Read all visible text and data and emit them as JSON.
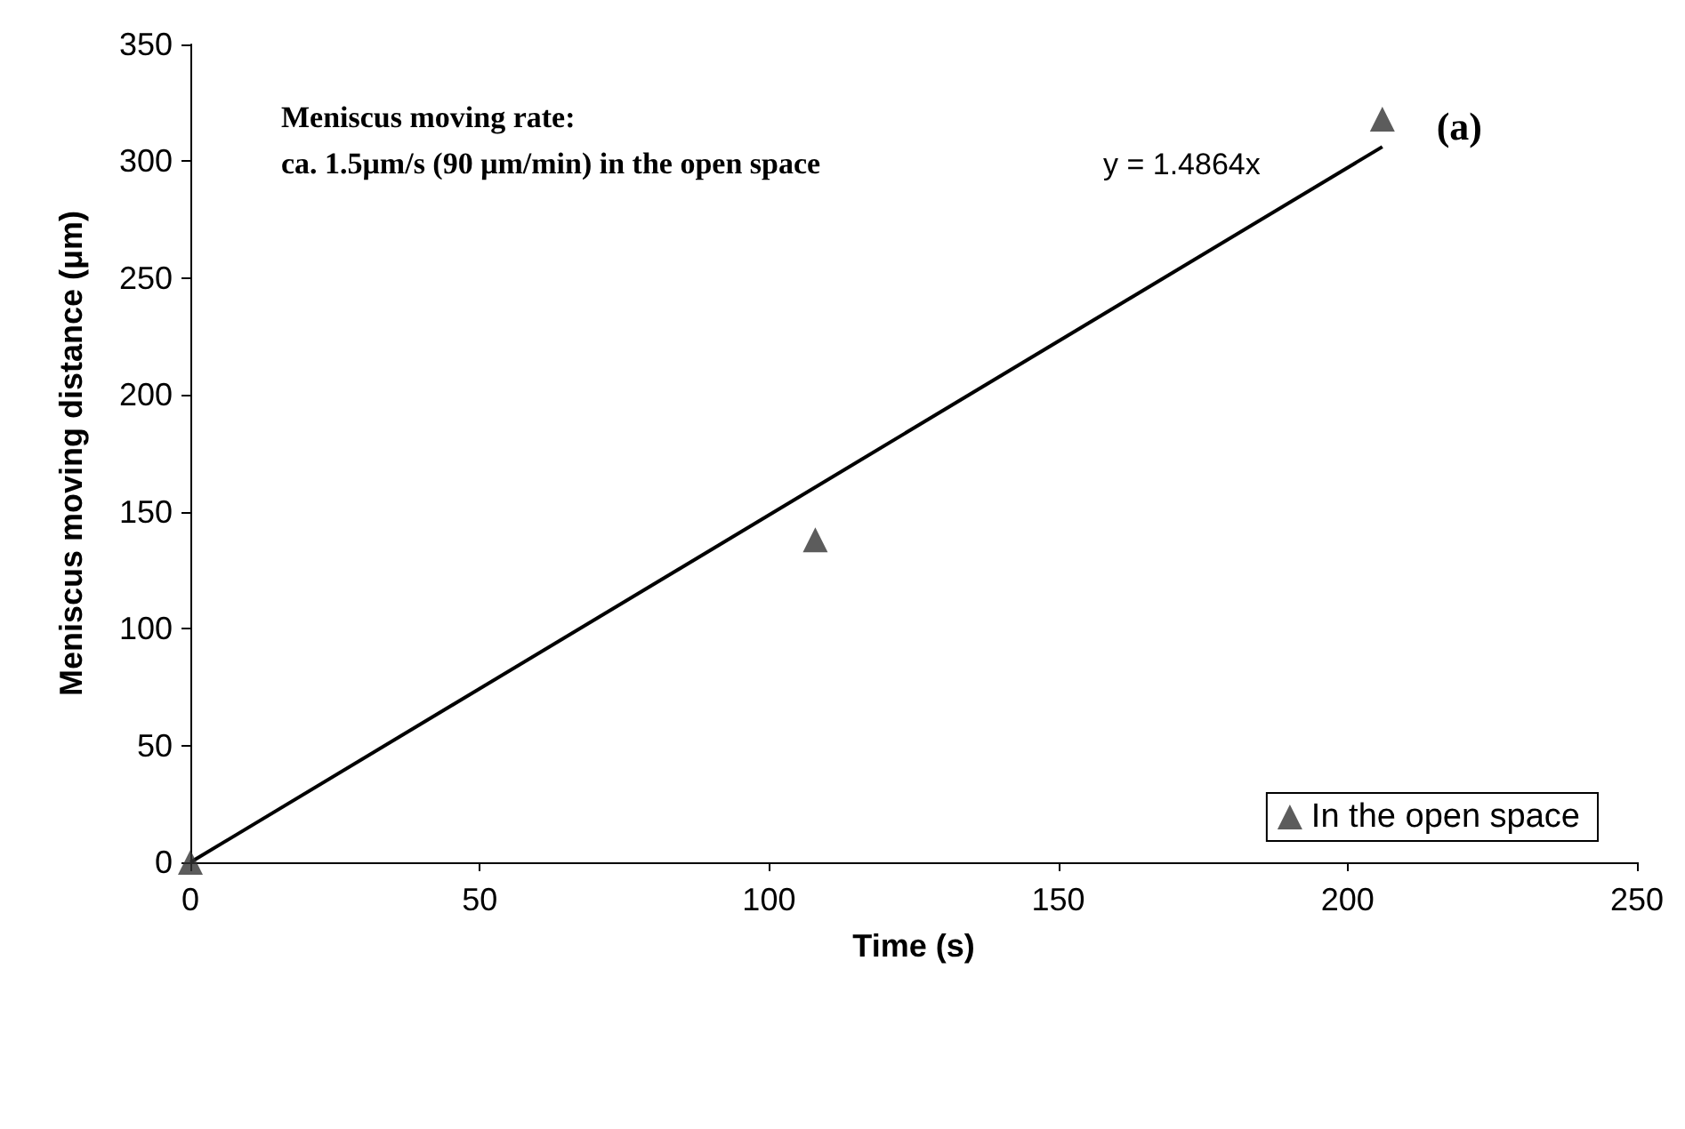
{
  "chart_data": {
    "type": "scatter",
    "xlabel": "Time (s)",
    "ylabel": "Meniscus moving distance (μm)",
    "xlim": [
      0,
      250
    ],
    "xticks": [
      0,
      50,
      100,
      150,
      200,
      250
    ],
    "ylim": [
      0,
      350
    ],
    "yticks": [
      0,
      50,
      100,
      150,
      200,
      250,
      300,
      350
    ],
    "grid": false,
    "legend": "bottom right",
    "series": [
      {
        "name": "In the open space",
        "type": "scatter",
        "marker": "triangle",
        "color": "#333333",
        "x": [
          0,
          108,
          206
        ],
        "values": [
          0,
          138,
          318
        ]
      },
      {
        "type": "line",
        "marker": "none",
        "color": "#000000",
        "x": [
          0,
          206
        ],
        "values": [
          0,
          306.2
        ]
      }
    ],
    "annotations": [
      "Meniscus moving rate:\nca. 1.5μm/s (90 μm/min) in the open space",
      "y = 1.4864x",
      "(a)"
    ]
  }
}
